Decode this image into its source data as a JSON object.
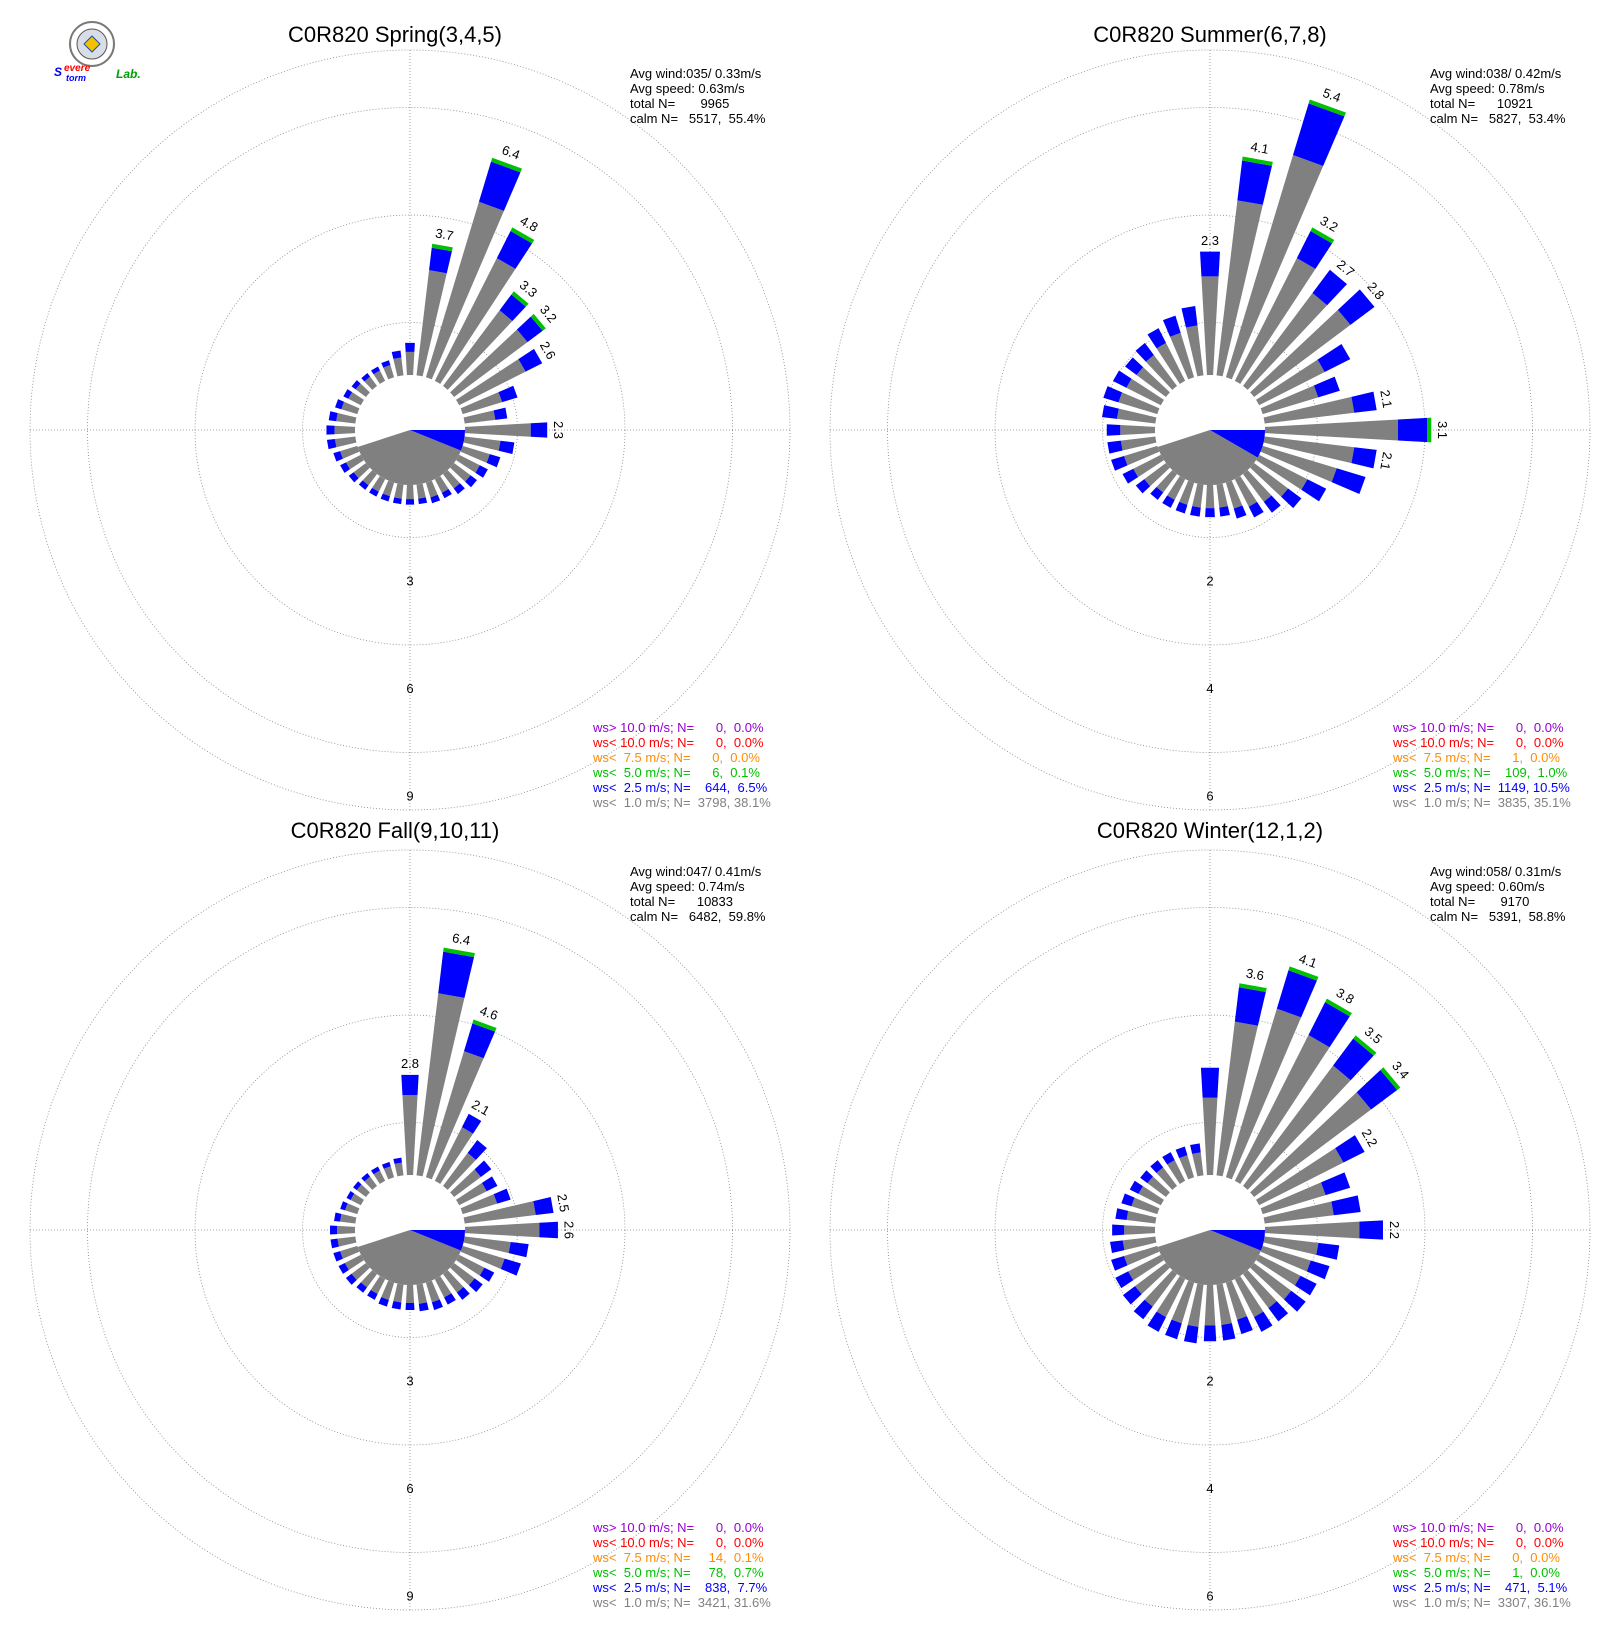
{
  "logo": {
    "text_s": "S",
    "text_evere": "evere",
    "text_torm": "torm",
    "text_lab": "Lab."
  },
  "colors": {
    "calm": "#808080",
    "lt1": "#808080",
    "lt2_5": "#0000ff",
    "lt5": "#00c000",
    "lt7_5": "#ff8c00",
    "lt10": "#ff0000",
    "gt10": "#9400d3",
    "grid": "#888888"
  },
  "chart_data": [
    {
      "type": "polar-bar",
      "title": "C0R820 Spring(3,4,5)",
      "stats": [
        "Avg wind:035/ 0.33m/s",
        "Avg speed: 0.63m/s",
        "total N=       9965",
        "calm N=   5517,  55.4%"
      ],
      "ring_step": 3,
      "ring_labels": [
        "3",
        "6",
        "9"
      ],
      "calm_arc": [
        90,
        250
      ],
      "calm_gray_arc": [
        112,
        252
      ],
      "calm_blue_arc": [
        90,
        112
      ],
      "sectors": [
        {
          "dir": 0,
          "v": 0.9
        },
        {
          "dir": 10,
          "v": 3.7,
          "label": "3.7"
        },
        {
          "dir": 20,
          "v": 6.4,
          "label": "6.4"
        },
        {
          "dir": 30,
          "v": 4.8,
          "label": "4.8"
        },
        {
          "dir": 40,
          "v": 3.3,
          "label": "3.3"
        },
        {
          "dir": 50,
          "v": 3.2,
          "label": "3.2"
        },
        {
          "dir": 60,
          "v": 2.6,
          "label": "2.6"
        },
        {
          "dir": 70,
          "v": 1.6
        },
        {
          "dir": 80,
          "v": 1.2
        },
        {
          "dir": 90,
          "v": 2.3,
          "label": "2.3"
        },
        {
          "dir": 100,
          "v": 1.4
        },
        {
          "dir": 110,
          "v": 1.1
        },
        {
          "dir": 120,
          "v": 0.9
        },
        {
          "dir": 130,
          "v": 0.8
        },
        {
          "dir": 140,
          "v": 0.7
        },
        {
          "dir": 150,
          "v": 0.6
        },
        {
          "dir": 160,
          "v": 0.6
        },
        {
          "dir": 170,
          "v": 0.55
        },
        {
          "dir": 180,
          "v": 0.55
        },
        {
          "dir": 190,
          "v": 0.55
        },
        {
          "dir": 200,
          "v": 0.55
        },
        {
          "dir": 210,
          "v": 0.55
        },
        {
          "dir": 220,
          "v": 0.55
        },
        {
          "dir": 230,
          "v": 0.6
        },
        {
          "dir": 240,
          "v": 0.65
        },
        {
          "dir": 250,
          "v": 0.7
        },
        {
          "dir": 260,
          "v": 0.8
        },
        {
          "dir": 270,
          "v": 0.8
        },
        {
          "dir": 280,
          "v": 0.75
        },
        {
          "dir": 290,
          "v": 0.65
        },
        {
          "dir": 300,
          "v": 0.55
        },
        {
          "dir": 310,
          "v": 0.5
        },
        {
          "dir": 320,
          "v": 0.45
        },
        {
          "dir": 330,
          "v": 0.45
        },
        {
          "dir": 340,
          "v": 0.5
        },
        {
          "dir": 350,
          "v": 0.7
        }
      ],
      "legend": [
        {
          "text": "ws> 10.0 m/s; N=      0,  0.0%",
          "cls": "gt10"
        },
        {
          "text": "ws< 10.0 m/s; N=      0,  0.0%",
          "cls": "lt10"
        },
        {
          "text": "ws<  7.5 m/s; N=      0,  0.0%",
          "cls": "lt7_5"
        },
        {
          "text": "ws<  5.0 m/s; N=      6,  0.1%",
          "cls": "lt5"
        },
        {
          "text": "ws<  2.5 m/s; N=    644,  6.5%",
          "cls": "lt2_5"
        },
        {
          "text": "ws<  1.0 m/s; N=  3798, 38.1%",
          "cls": "lt1"
        }
      ]
    },
    {
      "type": "polar-bar",
      "title": "C0R820 Summer(6,7,8)",
      "stats": [
        "Avg wind:038/ 0.42m/s",
        "Avg speed: 0.78m/s",
        "total N=      10921",
        "calm N=   5827,  53.4%"
      ],
      "ring_step": 2,
      "ring_labels": [
        "2",
        "4",
        "6"
      ],
      "calm_arc": [
        90,
        250
      ],
      "calm_gray_arc": [
        120,
        252
      ],
      "calm_blue_arc": [
        90,
        120
      ],
      "sectors": [
        {
          "dir": 0,
          "v": 2.3,
          "label": "2.3"
        },
        {
          "dir": 10,
          "v": 4.1,
          "label": "4.1"
        },
        {
          "dir": 20,
          "v": 5.4,
          "label": "5.4"
        },
        {
          "dir": 30,
          "v": 3.2,
          "label": "3.2"
        },
        {
          "dir": 40,
          "v": 2.7,
          "label": "2.7"
        },
        {
          "dir": 50,
          "v": 2.8,
          "label": "2.8"
        },
        {
          "dir": 60,
          "v": 1.9
        },
        {
          "dir": 70,
          "v": 1.5
        },
        {
          "dir": 80,
          "v": 2.1,
          "label": "2.1"
        },
        {
          "dir": 90,
          "v": 3.1,
          "label": "3.1"
        },
        {
          "dir": 100,
          "v": 2.1,
          "label": "2.1"
        },
        {
          "dir": 110,
          "v": 2.0
        },
        {
          "dir": 120,
          "v": 1.4
        },
        {
          "dir": 130,
          "v": 1.1
        },
        {
          "dir": 140,
          "v": 0.9
        },
        {
          "dir": 150,
          "v": 0.8
        },
        {
          "dir": 160,
          "v": 0.7
        },
        {
          "dir": 170,
          "v": 0.6
        },
        {
          "dir": 180,
          "v": 0.6
        },
        {
          "dir": 190,
          "v": 0.6
        },
        {
          "dir": 200,
          "v": 0.6
        },
        {
          "dir": 210,
          "v": 0.6
        },
        {
          "dir": 220,
          "v": 0.6
        },
        {
          "dir": 230,
          "v": 0.7
        },
        {
          "dir": 240,
          "v": 0.8
        },
        {
          "dir": 250,
          "v": 0.9
        },
        {
          "dir": 260,
          "v": 0.9
        },
        {
          "dir": 270,
          "v": 0.9
        },
        {
          "dir": 280,
          "v": 1.0
        },
        {
          "dir": 290,
          "v": 1.05
        },
        {
          "dir": 300,
          "v": 1.0
        },
        {
          "dir": 310,
          "v": 0.95
        },
        {
          "dir": 320,
          "v": 1.0
        },
        {
          "dir": 330,
          "v": 1.1
        },
        {
          "dir": 340,
          "v": 1.2
        },
        {
          "dir": 350,
          "v": 1.3
        }
      ],
      "legend": [
        {
          "text": "ws> 10.0 m/s; N=      0,  0.0%",
          "cls": "gt10"
        },
        {
          "text": "ws< 10.0 m/s; N=      0,  0.0%",
          "cls": "lt10"
        },
        {
          "text": "ws<  7.5 m/s; N=      1,  0.0%",
          "cls": "lt7_5"
        },
        {
          "text": "ws<  5.0 m/s; N=    109,  1.0%",
          "cls": "lt5"
        },
        {
          "text": "ws<  2.5 m/s; N=  1149, 10.5%",
          "cls": "lt2_5"
        },
        {
          "text": "ws<  1.0 m/s; N=  3835, 35.1%",
          "cls": "lt1"
        }
      ]
    },
    {
      "type": "polar-bar",
      "title": "C0R820 Fall(9,10,11)",
      "stats": [
        "Avg wind:047/ 0.41m/s",
        "Avg speed: 0.74m/s",
        "total N=      10833",
        "calm N=   6482,  59.8%"
      ],
      "ring_step": 3,
      "ring_labels": [
        "3",
        "6",
        "9"
      ],
      "calm_arc": [
        90,
        250
      ],
      "calm_gray_arc": [
        112,
        252
      ],
      "calm_blue_arc": [
        90,
        112
      ],
      "sectors": [
        {
          "dir": 0,
          "v": 2.8,
          "label": "2.8"
        },
        {
          "dir": 10,
          "v": 6.4,
          "label": "6.4"
        },
        {
          "dir": 20,
          "v": 4.6,
          "label": "4.6"
        },
        {
          "dir": 30,
          "v": 2.1,
          "label": "2.1"
        },
        {
          "dir": 40,
          "v": 1.6
        },
        {
          "dir": 50,
          "v": 1.3
        },
        {
          "dir": 60,
          "v": 1.2
        },
        {
          "dir": 70,
          "v": 1.4
        },
        {
          "dir": 80,
          "v": 2.5,
          "label": "2.5"
        },
        {
          "dir": 90,
          "v": 2.6,
          "label": "2.6"
        },
        {
          "dir": 100,
          "v": 1.8
        },
        {
          "dir": 110,
          "v": 1.7
        },
        {
          "dir": 120,
          "v": 1.1
        },
        {
          "dir": 130,
          "v": 1.0
        },
        {
          "dir": 140,
          "v": 0.9
        },
        {
          "dir": 150,
          "v": 0.8
        },
        {
          "dir": 160,
          "v": 0.8
        },
        {
          "dir": 170,
          "v": 0.75
        },
        {
          "dir": 180,
          "v": 0.7
        },
        {
          "dir": 190,
          "v": 0.7
        },
        {
          "dir": 200,
          "v": 0.7
        },
        {
          "dir": 210,
          "v": 0.65
        },
        {
          "dir": 220,
          "v": 0.65
        },
        {
          "dir": 230,
          "v": 0.7
        },
        {
          "dir": 240,
          "v": 0.7
        },
        {
          "dir": 250,
          "v": 0.7
        },
        {
          "dir": 260,
          "v": 0.7
        },
        {
          "dir": 270,
          "v": 0.7
        },
        {
          "dir": 280,
          "v": 0.6
        },
        {
          "dir": 290,
          "v": 0.5
        },
        {
          "dir": 300,
          "v": 0.45
        },
        {
          "dir": 310,
          "v": 0.45
        },
        {
          "dir": 320,
          "v": 0.45
        },
        {
          "dir": 330,
          "v": 0.45
        },
        {
          "dir": 340,
          "v": 0.45
        },
        {
          "dir": 350,
          "v": 0.5
        }
      ],
      "legend": [
        {
          "text": "ws> 10.0 m/s; N=      0,  0.0%",
          "cls": "gt10"
        },
        {
          "text": "ws< 10.0 m/s; N=      0,  0.0%",
          "cls": "lt10"
        },
        {
          "text": "ws<  7.5 m/s; N=     14,  0.1%",
          "cls": "lt7_5"
        },
        {
          "text": "ws<  5.0 m/s; N=     78,  0.7%",
          "cls": "lt5"
        },
        {
          "text": "ws<  2.5 m/s; N=    838,  7.7%",
          "cls": "lt2_5"
        },
        {
          "text": "ws<  1.0 m/s; N=  3421, 31.6%",
          "cls": "lt1"
        }
      ]
    },
    {
      "type": "polar-bar",
      "title": "C0R820 Winter(12,1,2)",
      "stats": [
        "Avg wind:058/ 0.31m/s",
        "Avg speed: 0.60m/s",
        "total N=       9170",
        "calm N=   5391,  58.8%"
      ],
      "ring_step": 2,
      "ring_labels": [
        "2",
        "4",
        "6"
      ],
      "calm_arc": [
        90,
        250
      ],
      "calm_gray_arc": [
        112,
        252
      ],
      "calm_blue_arc": [
        90,
        112
      ],
      "sectors": [
        {
          "dir": 0,
          "v": 2.0
        },
        {
          "dir": 10,
          "v": 3.6,
          "label": "3.6"
        },
        {
          "dir": 20,
          "v": 4.1,
          "label": "4.1"
        },
        {
          "dir": 30,
          "v": 3.8,
          "label": "3.8"
        },
        {
          "dir": 40,
          "v": 3.5,
          "label": "3.5"
        },
        {
          "dir": 50,
          "v": 3.4,
          "label": "3.4"
        },
        {
          "dir": 60,
          "v": 2.2,
          "label": "2.2"
        },
        {
          "dir": 70,
          "v": 1.7
        },
        {
          "dir": 80,
          "v": 1.8
        },
        {
          "dir": 90,
          "v": 2.2,
          "label": "2.2"
        },
        {
          "dir": 100,
          "v": 1.4
        },
        {
          "dir": 110,
          "v": 1.3
        },
        {
          "dir": 120,
          "v": 1.2
        },
        {
          "dir": 130,
          "v": 1.2
        },
        {
          "dir": 140,
          "v": 1.1
        },
        {
          "dir": 150,
          "v": 1.1
        },
        {
          "dir": 160,
          "v": 1.0
        },
        {
          "dir": 170,
          "v": 1.05
        },
        {
          "dir": 180,
          "v": 1.05
        },
        {
          "dir": 190,
          "v": 1.1
        },
        {
          "dir": 200,
          "v": 1.1
        },
        {
          "dir": 210,
          "v": 1.1
        },
        {
          "dir": 220,
          "v": 1.05
        },
        {
          "dir": 230,
          "v": 1.0
        },
        {
          "dir": 240,
          "v": 0.95
        },
        {
          "dir": 250,
          "v": 0.9
        },
        {
          "dir": 260,
          "v": 0.85
        },
        {
          "dir": 270,
          "v": 0.8
        },
        {
          "dir": 280,
          "v": 0.75
        },
        {
          "dir": 290,
          "v": 0.7
        },
        {
          "dir": 300,
          "v": 0.65
        },
        {
          "dir": 310,
          "v": 0.6
        },
        {
          "dir": 320,
          "v": 0.6
        },
        {
          "dir": 330,
          "v": 0.6
        },
        {
          "dir": 340,
          "v": 0.6
        },
        {
          "dir": 350,
          "v": 0.6
        }
      ],
      "legend": [
        {
          "text": "ws> 10.0 m/s; N=      0,  0.0%",
          "cls": "gt10"
        },
        {
          "text": "ws< 10.0 m/s; N=      0,  0.0%",
          "cls": "lt10"
        },
        {
          "text": "ws<  7.5 m/s; N=      0,  0.0%",
          "cls": "lt7_5"
        },
        {
          "text": "ws<  5.0 m/s; N=      1,  0.0%",
          "cls": "lt5"
        },
        {
          "text": "ws<  2.5 m/s; N=    471,  5.1%",
          "cls": "lt2_5"
        },
        {
          "text": "ws<  1.0 m/s; N=  3307, 36.1%",
          "cls": "lt1"
        }
      ]
    }
  ]
}
